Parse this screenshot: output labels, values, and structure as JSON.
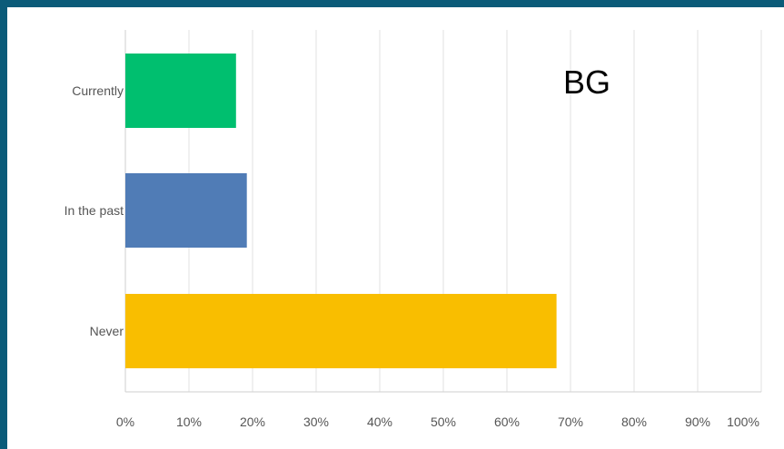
{
  "overlay_text": "BG",
  "colors": {
    "background_border": "#0b5b79",
    "gridline": "#e2e2e2",
    "axis_line": "#cfcfcf"
  },
  "chart_data": {
    "type": "bar",
    "orientation": "horizontal",
    "categories": [
      "Currently",
      "In the past",
      "Never"
    ],
    "values": [
      17.4,
      19.1,
      67.8
    ],
    "bar_colors": [
      "#00bf6f",
      "#507cb6",
      "#f9be00"
    ],
    "xlim": [
      0,
      100
    ],
    "xticks": [
      "0%",
      "10%",
      "20%",
      "30%",
      "40%",
      "50%",
      "60%",
      "70%",
      "80%",
      "90%",
      "100%"
    ],
    "grid": true,
    "title": "",
    "xlabel": "",
    "ylabel": ""
  }
}
